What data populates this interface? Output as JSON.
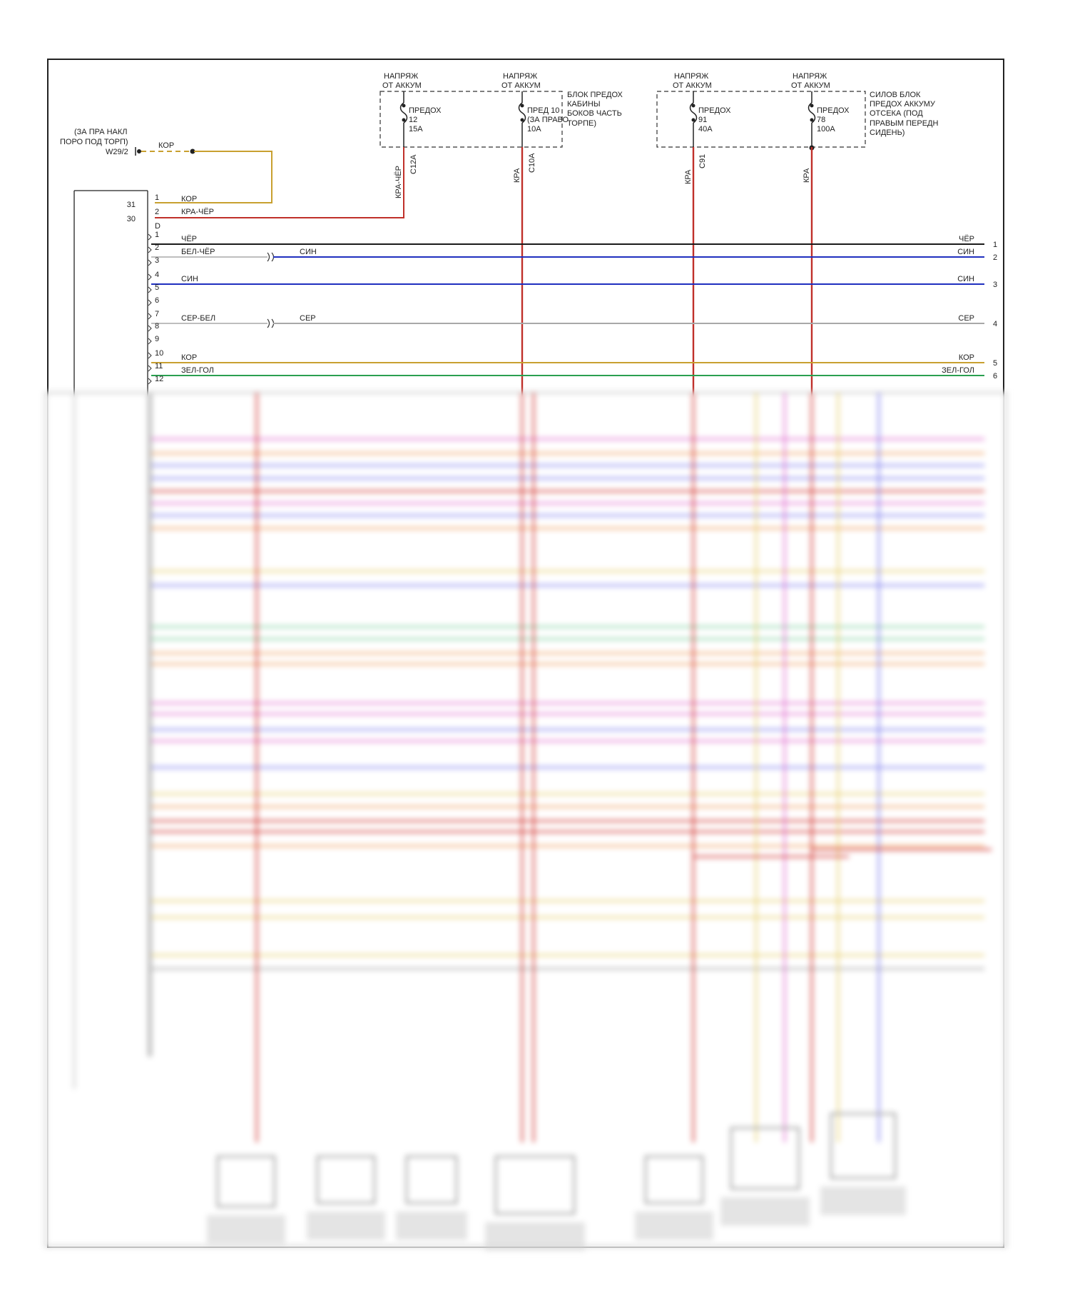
{
  "colors": {
    "frame": "#222222",
    "black": "#1a1a1a",
    "red": "#d0312d",
    "blue": "#1f2fbf",
    "gray": "#a8a8a8",
    "brown": "#c8a030",
    "green": "#2aa050",
    "pink": "#e070d0",
    "orange": "#f0a060",
    "violet": "#8080f0",
    "lightgreen": "#80d0a0",
    "yellow": "#e8d070"
  },
  "ground": {
    "label1": "(ЗА ПРА НАКЛ",
    "label2": "ПОРО ПОД ТОРП)",
    "id": "W29/2",
    "wire_color": "КОР"
  },
  "fuse_blocks": [
    {
      "title": [
        "БЛОК ПРЕДОХ",
        "КАБИНЫ",
        "БОКОВ ЧАСТЬ",
        "ТОРПЕ)"
      ],
      "fuses": [
        {
          "supply": [
            "НАПРЯЖ",
            "ОТ АККУМ"
          ],
          "label": [
            "ПРЕДОХ",
            "12",
            "15A"
          ],
          "connector": "C12A",
          "wire": "КРА-ЧЁР"
        },
        {
          "supply": [
            "НАПРЯЖ",
            "ОТ АККУМ"
          ],
          "label": [
            "ПРЕД 10",
            "(ЗА ПРАВО",
            "10A"
          ],
          "connector": "C10A",
          "wire": "КРА"
        }
      ]
    },
    {
      "title": [
        "СИЛОВ БЛОК",
        "ПРЕДОХ АККУМУ",
        "ОТСЕКА (ПОД",
        "ПРАВЫМ ПЕРЕДН",
        "СИДЕНЬ)"
      ],
      "fuses": [
        {
          "supply": [
            "НАПРЯЖ",
            "ОТ АККУМ"
          ],
          "label": [
            "ПРЕДОХ",
            "91",
            "40A"
          ],
          "connector": "C91",
          "wire": "КРА"
        },
        {
          "supply": [
            "НАПРЯЖ",
            "ОТ АККУМ"
          ],
          "label": [
            "ПРЕДОХ",
            "78",
            "100A"
          ],
          "connector": "",
          "wire": "КРА"
        }
      ]
    }
  ],
  "connector_d": {
    "name": "D",
    "ext_pins": [
      "31",
      "30"
    ],
    "top_pins": [
      {
        "pin": "1",
        "color": "КОР"
      },
      {
        "pin": "2",
        "color": "КРА-ЧЁР"
      }
    ],
    "rows": [
      {
        "pin": "1",
        "left": "ЧЁР",
        "mid": "",
        "right": "ЧЁР",
        "num": "1"
      },
      {
        "pin": "2",
        "left": "БЕЛ-ЧЁР",
        "mid": "СИН",
        "right": "СИН",
        "num": "2"
      },
      {
        "pin": "3",
        "left": "",
        "mid": "",
        "right": "",
        "num": ""
      },
      {
        "pin": "4",
        "left": "СИН",
        "mid": "",
        "right": "СИН",
        "num": "3"
      },
      {
        "pin": "5",
        "left": "",
        "mid": "",
        "right": "",
        "num": ""
      },
      {
        "pin": "6",
        "left": "",
        "mid": "",
        "right": "",
        "num": ""
      },
      {
        "pin": "7",
        "left": "СЕР-БЕЛ",
        "mid": "СЕР",
        "right": "СЕР",
        "num": "4"
      },
      {
        "pin": "8",
        "left": "",
        "mid": "",
        "right": "",
        "num": ""
      },
      {
        "pin": "9",
        "left": "",
        "mid": "",
        "right": "",
        "num": ""
      },
      {
        "pin": "10",
        "left": "КОР",
        "mid": "",
        "right": "КОР",
        "num": "5"
      },
      {
        "pin": "11",
        "left": "ЗЕЛ-ГОЛ",
        "mid": "",
        "right": "ЗЕЛ-ГОЛ",
        "num": "6"
      },
      {
        "pin": "12",
        "left": "",
        "mid": "",
        "right": "",
        "num": ""
      }
    ]
  }
}
